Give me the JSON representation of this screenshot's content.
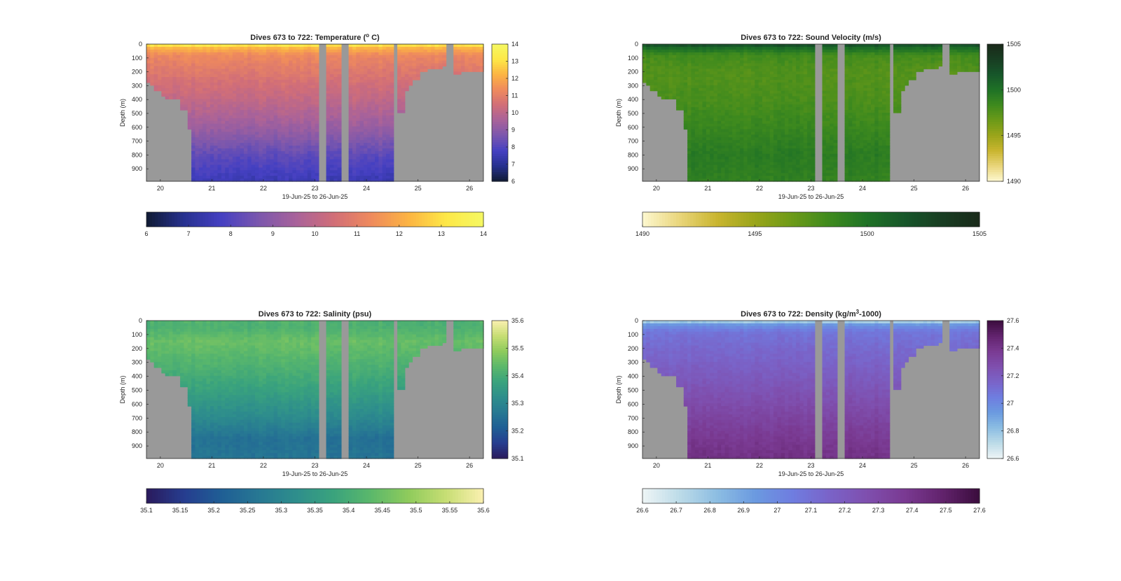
{
  "figure": {
    "background": "#ffffff",
    "nodata_color": "#999999"
  },
  "chart_data": [
    {
      "type": "heatmap",
      "variable": "temperature",
      "title": "Dives 673 to 722: Temperature (",
      "title_sup": "o",
      "title_end": " C)",
      "xlabel": "19-Jun-25 to 26-Jun-25",
      "ylabel": "Depth (m)",
      "x_ticks": [
        "20",
        "21",
        "22",
        "23",
        "24",
        "25",
        "26"
      ],
      "y_ticks": [
        "0",
        "100",
        "200",
        "300",
        "400",
        "500",
        "600",
        "700",
        "800",
        "900"
      ],
      "xlim": [
        19.73,
        26.27
      ],
      "ylim": [
        0,
        990
      ],
      "clim": [
        6,
        14
      ],
      "colorbar_ticks": [
        "6",
        "7",
        "8",
        "9",
        "10",
        "11",
        "12",
        "13",
        "14"
      ],
      "hcolorbar_ticks": [
        "6",
        "7",
        "8",
        "9",
        "10",
        "11",
        "12",
        "13",
        "14"
      ],
      "colormap": [
        "#0f1a33",
        "#27318f",
        "#4540c2",
        "#7b57ad",
        "#a8629a",
        "#d16e78",
        "#ef8a5d",
        "#fcb443",
        "#fde847",
        "#f5f862"
      ],
      "profile": {
        "surface_value": 13.5,
        "depth_values": [
          [
            0,
            13.5
          ],
          [
            30,
            12.2
          ],
          [
            80,
            11.3
          ],
          [
            200,
            10.8
          ],
          [
            400,
            10.1
          ],
          [
            600,
            9.3
          ],
          [
            800,
            8.2
          ],
          [
            990,
            7.5
          ]
        ]
      }
    },
    {
      "type": "heatmap",
      "variable": "sound_velocity",
      "title": "Dives 673 to 722: Sound Velocity (m/s)",
      "title_sup": "",
      "title_end": "",
      "xlabel": "19-Jun-25 to 26-Jun-25",
      "ylabel": "Depth (m)",
      "x_ticks": [
        "20",
        "21",
        "22",
        "23",
        "24",
        "25",
        "26"
      ],
      "y_ticks": [
        "0",
        "100",
        "200",
        "300",
        "400",
        "500",
        "600",
        "700",
        "800",
        "900"
      ],
      "xlim": [
        19.73,
        26.27
      ],
      "ylim": [
        0,
        990
      ],
      "clim": [
        1490,
        1505
      ],
      "colorbar_ticks": [
        "1490",
        "1495",
        "1500",
        "1505"
      ],
      "hcolorbar_ticks": [
        "1490",
        "1495",
        "1500",
        "1505"
      ],
      "colormap": [
        "#fdf8d0",
        "#e9d57a",
        "#c9b52f",
        "#9aa51a",
        "#6c9a18",
        "#3e8a1e",
        "#1f7226",
        "#17562a",
        "#183d22",
        "#1a2a1a"
      ],
      "profile": {
        "surface_value": 1502.5,
        "depth_values": [
          [
            0,
            1502.5
          ],
          [
            30,
            1500.4
          ],
          [
            80,
            1498.2
          ],
          [
            200,
            1497.6
          ],
          [
            400,
            1497.9
          ],
          [
            600,
            1498.6
          ],
          [
            800,
            1499.4
          ],
          [
            990,
            1499.0
          ]
        ]
      }
    },
    {
      "type": "heatmap",
      "variable": "salinity",
      "title": "Dives 673 to 722: Salinity (psu)",
      "title_sup": "",
      "title_end": "",
      "xlabel": "19-Jun-25 to 26-Jun-25",
      "ylabel": "Depth (m)",
      "x_ticks": [
        "20",
        "21",
        "22",
        "23",
        "24",
        "25",
        "26"
      ],
      "y_ticks": [
        "0",
        "100",
        "200",
        "300",
        "400",
        "500",
        "600",
        "700",
        "800",
        "900"
      ],
      "xlim": [
        19.73,
        26.27
      ],
      "ylim": [
        0,
        990
      ],
      "clim": [
        35.1,
        35.6
      ],
      "colorbar_ticks": [
        "35.1",
        "35.2",
        "35.3",
        "35.4",
        "35.5",
        "35.6"
      ],
      "hcolorbar_ticks": [
        "35.1",
        "35.15",
        "35.2",
        "35.25",
        "35.3",
        "35.35",
        "35.4",
        "35.45",
        "35.5",
        "35.55",
        "35.6"
      ],
      "colormap": [
        "#2a1a5c",
        "#263d8f",
        "#1f5e95",
        "#277893",
        "#2e8e8c",
        "#3aa37d",
        "#5bb86b",
        "#8fcb5c",
        "#c7de74",
        "#fbf0b0"
      ],
      "profile": {
        "surface_value": 35.42,
        "depth_values": [
          [
            0,
            35.42
          ],
          [
            40,
            35.41
          ],
          [
            150,
            35.45
          ],
          [
            300,
            35.42
          ],
          [
            500,
            35.37
          ],
          [
            700,
            35.31
          ],
          [
            850,
            35.25
          ],
          [
            990,
            35.26
          ]
        ]
      }
    },
    {
      "type": "heatmap",
      "variable": "density",
      "title": "Dives 673 to 722: Density (kg/m",
      "title_sup": "3",
      "title_end": "-1000)",
      "xlabel": "19-Jun-25 to 26-Jun-25",
      "ylabel": "Depth (m)",
      "x_ticks": [
        "20",
        "21",
        "22",
        "23",
        "24",
        "25",
        "26"
      ],
      "y_ticks": [
        "0",
        "100",
        "200",
        "300",
        "400",
        "500",
        "600",
        "700",
        "800",
        "900"
      ],
      "xlim": [
        19.73,
        26.27
      ],
      "ylim": [
        0,
        990
      ],
      "clim": [
        26.6,
        27.6
      ],
      "colorbar_ticks": [
        "26.6",
        "26.8",
        "27",
        "27.2",
        "27.4",
        "27.6"
      ],
      "hcolorbar_ticks": [
        "26.6",
        "26.7",
        "26.8",
        "26.9",
        "27",
        "27.1",
        "27.2",
        "27.3",
        "27.4",
        "27.5",
        "27.6"
      ],
      "colormap": [
        "#eef5f6",
        "#bcdbe8",
        "#8cbde2",
        "#6b9ae0",
        "#6f7de0",
        "#7a63c8",
        "#7f4fae",
        "#7a3a92",
        "#62236d",
        "#3b0d3d"
      ],
      "profile": {
        "surface_value": 26.7,
        "depth_values": [
          [
            0,
            26.7
          ],
          [
            30,
            26.95
          ],
          [
            80,
            27.08
          ],
          [
            200,
            27.13
          ],
          [
            400,
            27.2
          ],
          [
            600,
            27.28
          ],
          [
            800,
            27.36
          ],
          [
            990,
            27.42
          ]
        ]
      }
    }
  ],
  "data_mask": {
    "note_units": "x in days of June 2025, depth in m",
    "missing_intervals": [
      [
        23.08,
        23.22
      ],
      [
        23.48,
        23.62
      ],
      [
        24.52,
        24.62
      ],
      [
        25.55,
        25.68
      ]
    ],
    "bottom_depth_profile": [
      [
        19.73,
        280
      ],
      [
        19.82,
        280
      ],
      [
        19.82,
        300
      ],
      [
        19.9,
        300
      ],
      [
        19.9,
        330
      ],
      [
        20.0,
        330
      ],
      [
        20.0,
        370
      ],
      [
        20.1,
        370
      ],
      [
        20.1,
        400
      ],
      [
        20.35,
        400
      ],
      [
        20.35,
        470
      ],
      [
        20.5,
        470
      ],
      [
        20.5,
        620
      ],
      [
        20.63,
        620
      ],
      [
        20.63,
        990
      ],
      [
        24.52,
        990
      ],
      [
        24.62,
        990
      ],
      [
        24.62,
        500
      ],
      [
        24.73,
        500
      ],
      [
        24.73,
        340
      ],
      [
        24.82,
        340
      ],
      [
        24.82,
        300
      ],
      [
        24.9,
        300
      ],
      [
        24.9,
        250
      ],
      [
        25.0,
        250
      ],
      [
        25.0,
        200
      ],
      [
        25.2,
        200
      ],
      [
        25.2,
        170
      ],
      [
        25.5,
        170
      ],
      [
        25.5,
        160
      ],
      [
        25.55,
        160
      ],
      [
        25.68,
        210
      ],
      [
        25.85,
        210
      ],
      [
        25.85,
        200
      ],
      [
        26.1,
        200
      ],
      [
        26.1,
        190
      ],
      [
        26.27,
        190
      ]
    ]
  }
}
